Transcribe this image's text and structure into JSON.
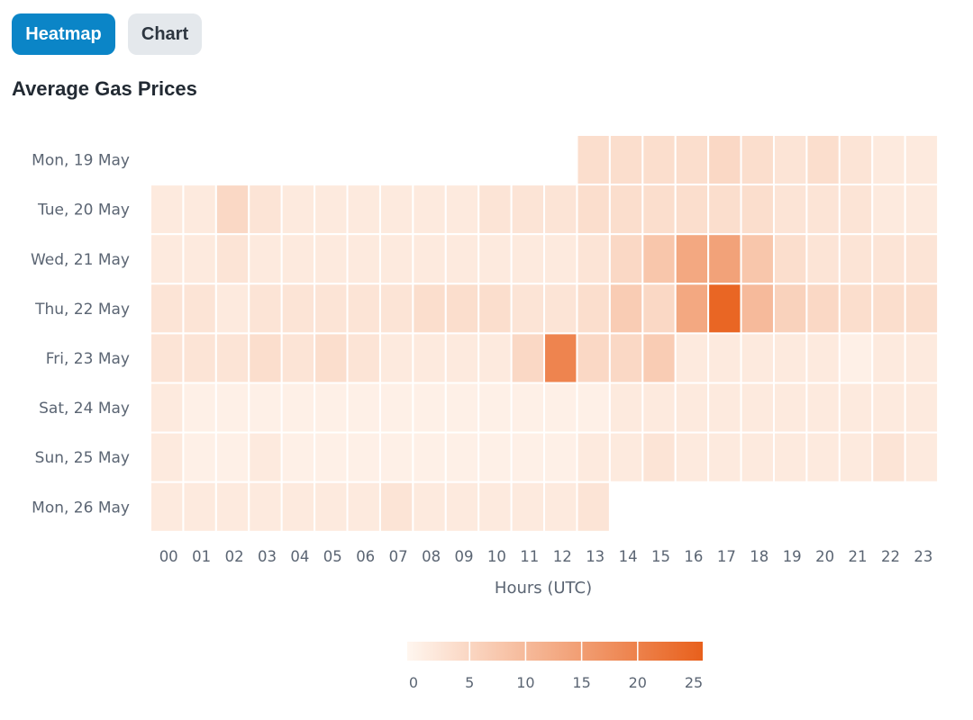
{
  "tabs": [
    {
      "label": "Heatmap",
      "active": true
    },
    {
      "label": "Chart",
      "active": false
    }
  ],
  "title": "Average Gas Prices",
  "colors": {
    "accent": "#0b85c7",
    "scale_low": "#fff6ef",
    "scale_high": "#e8601c",
    "grid_line": "#ffffff"
  },
  "chart_data": {
    "type": "heatmap",
    "title": "Average Gas Prices",
    "xlabel": "Hours (UTC)",
    "ylabel": "",
    "x_categories": [
      "00",
      "01",
      "02",
      "03",
      "04",
      "05",
      "06",
      "07",
      "08",
      "09",
      "10",
      "11",
      "12",
      "13",
      "14",
      "15",
      "16",
      "17",
      "18",
      "19",
      "20",
      "21",
      "22",
      "23"
    ],
    "y_categories": [
      "Mon, 19 May",
      "Tue, 20 May",
      "Wed, 21 May",
      "Thu, 22 May",
      "Fri, 23 May",
      "Sat, 24 May",
      "Sun, 25 May",
      "Mon, 26 May"
    ],
    "values": [
      [
        null,
        null,
        null,
        null,
        null,
        null,
        null,
        null,
        null,
        null,
        null,
        null,
        null,
        4,
        4,
        4,
        4,
        5,
        4,
        3,
        4,
        3,
        2,
        2
      ],
      [
        2,
        2,
        5,
        3,
        2,
        2,
        2,
        2,
        2,
        2,
        3,
        3,
        3,
        4,
        4,
        4,
        4,
        4,
        4,
        3,
        3,
        3,
        2,
        2
      ],
      [
        2,
        2,
        3,
        2,
        2,
        2,
        2,
        2,
        2,
        2,
        2,
        2,
        2,
        3,
        5,
        8,
        13,
        14,
        8,
        4,
        3,
        3,
        3,
        3
      ],
      [
        3,
        3,
        2,
        3,
        3,
        3,
        3,
        3,
        4,
        4,
        4,
        3,
        3,
        4,
        7,
        5,
        13,
        24,
        10,
        6,
        5,
        4,
        4,
        4
      ],
      [
        3,
        3,
        3,
        4,
        3,
        4,
        3,
        2,
        2,
        2,
        2,
        5,
        19,
        5,
        5,
        7,
        2,
        2,
        2,
        2,
        2,
        1,
        2,
        2
      ],
      [
        2,
        1,
        1,
        1,
        1,
        1,
        1,
        1,
        1,
        1,
        1,
        1,
        1,
        1,
        2,
        2,
        2,
        2,
        2,
        2,
        2,
        2,
        2,
        2
      ],
      [
        2,
        1,
        1,
        2,
        1,
        1,
        1,
        1,
        1,
        1,
        1,
        1,
        1,
        2,
        2,
        3,
        2,
        2,
        2,
        2,
        2,
        2,
        3,
        2
      ],
      [
        2,
        2,
        2,
        2,
        2,
        2,
        2,
        3,
        2,
        2,
        2,
        2,
        2,
        3,
        null,
        null,
        null,
        null,
        null,
        null,
        null,
        null,
        null,
        null
      ]
    ],
    "scale": {
      "min": 0,
      "max": 25,
      "ticks": [
        0,
        5,
        10,
        15,
        20,
        25
      ]
    },
    "legend": "bottom-center",
    "grid": false
  }
}
